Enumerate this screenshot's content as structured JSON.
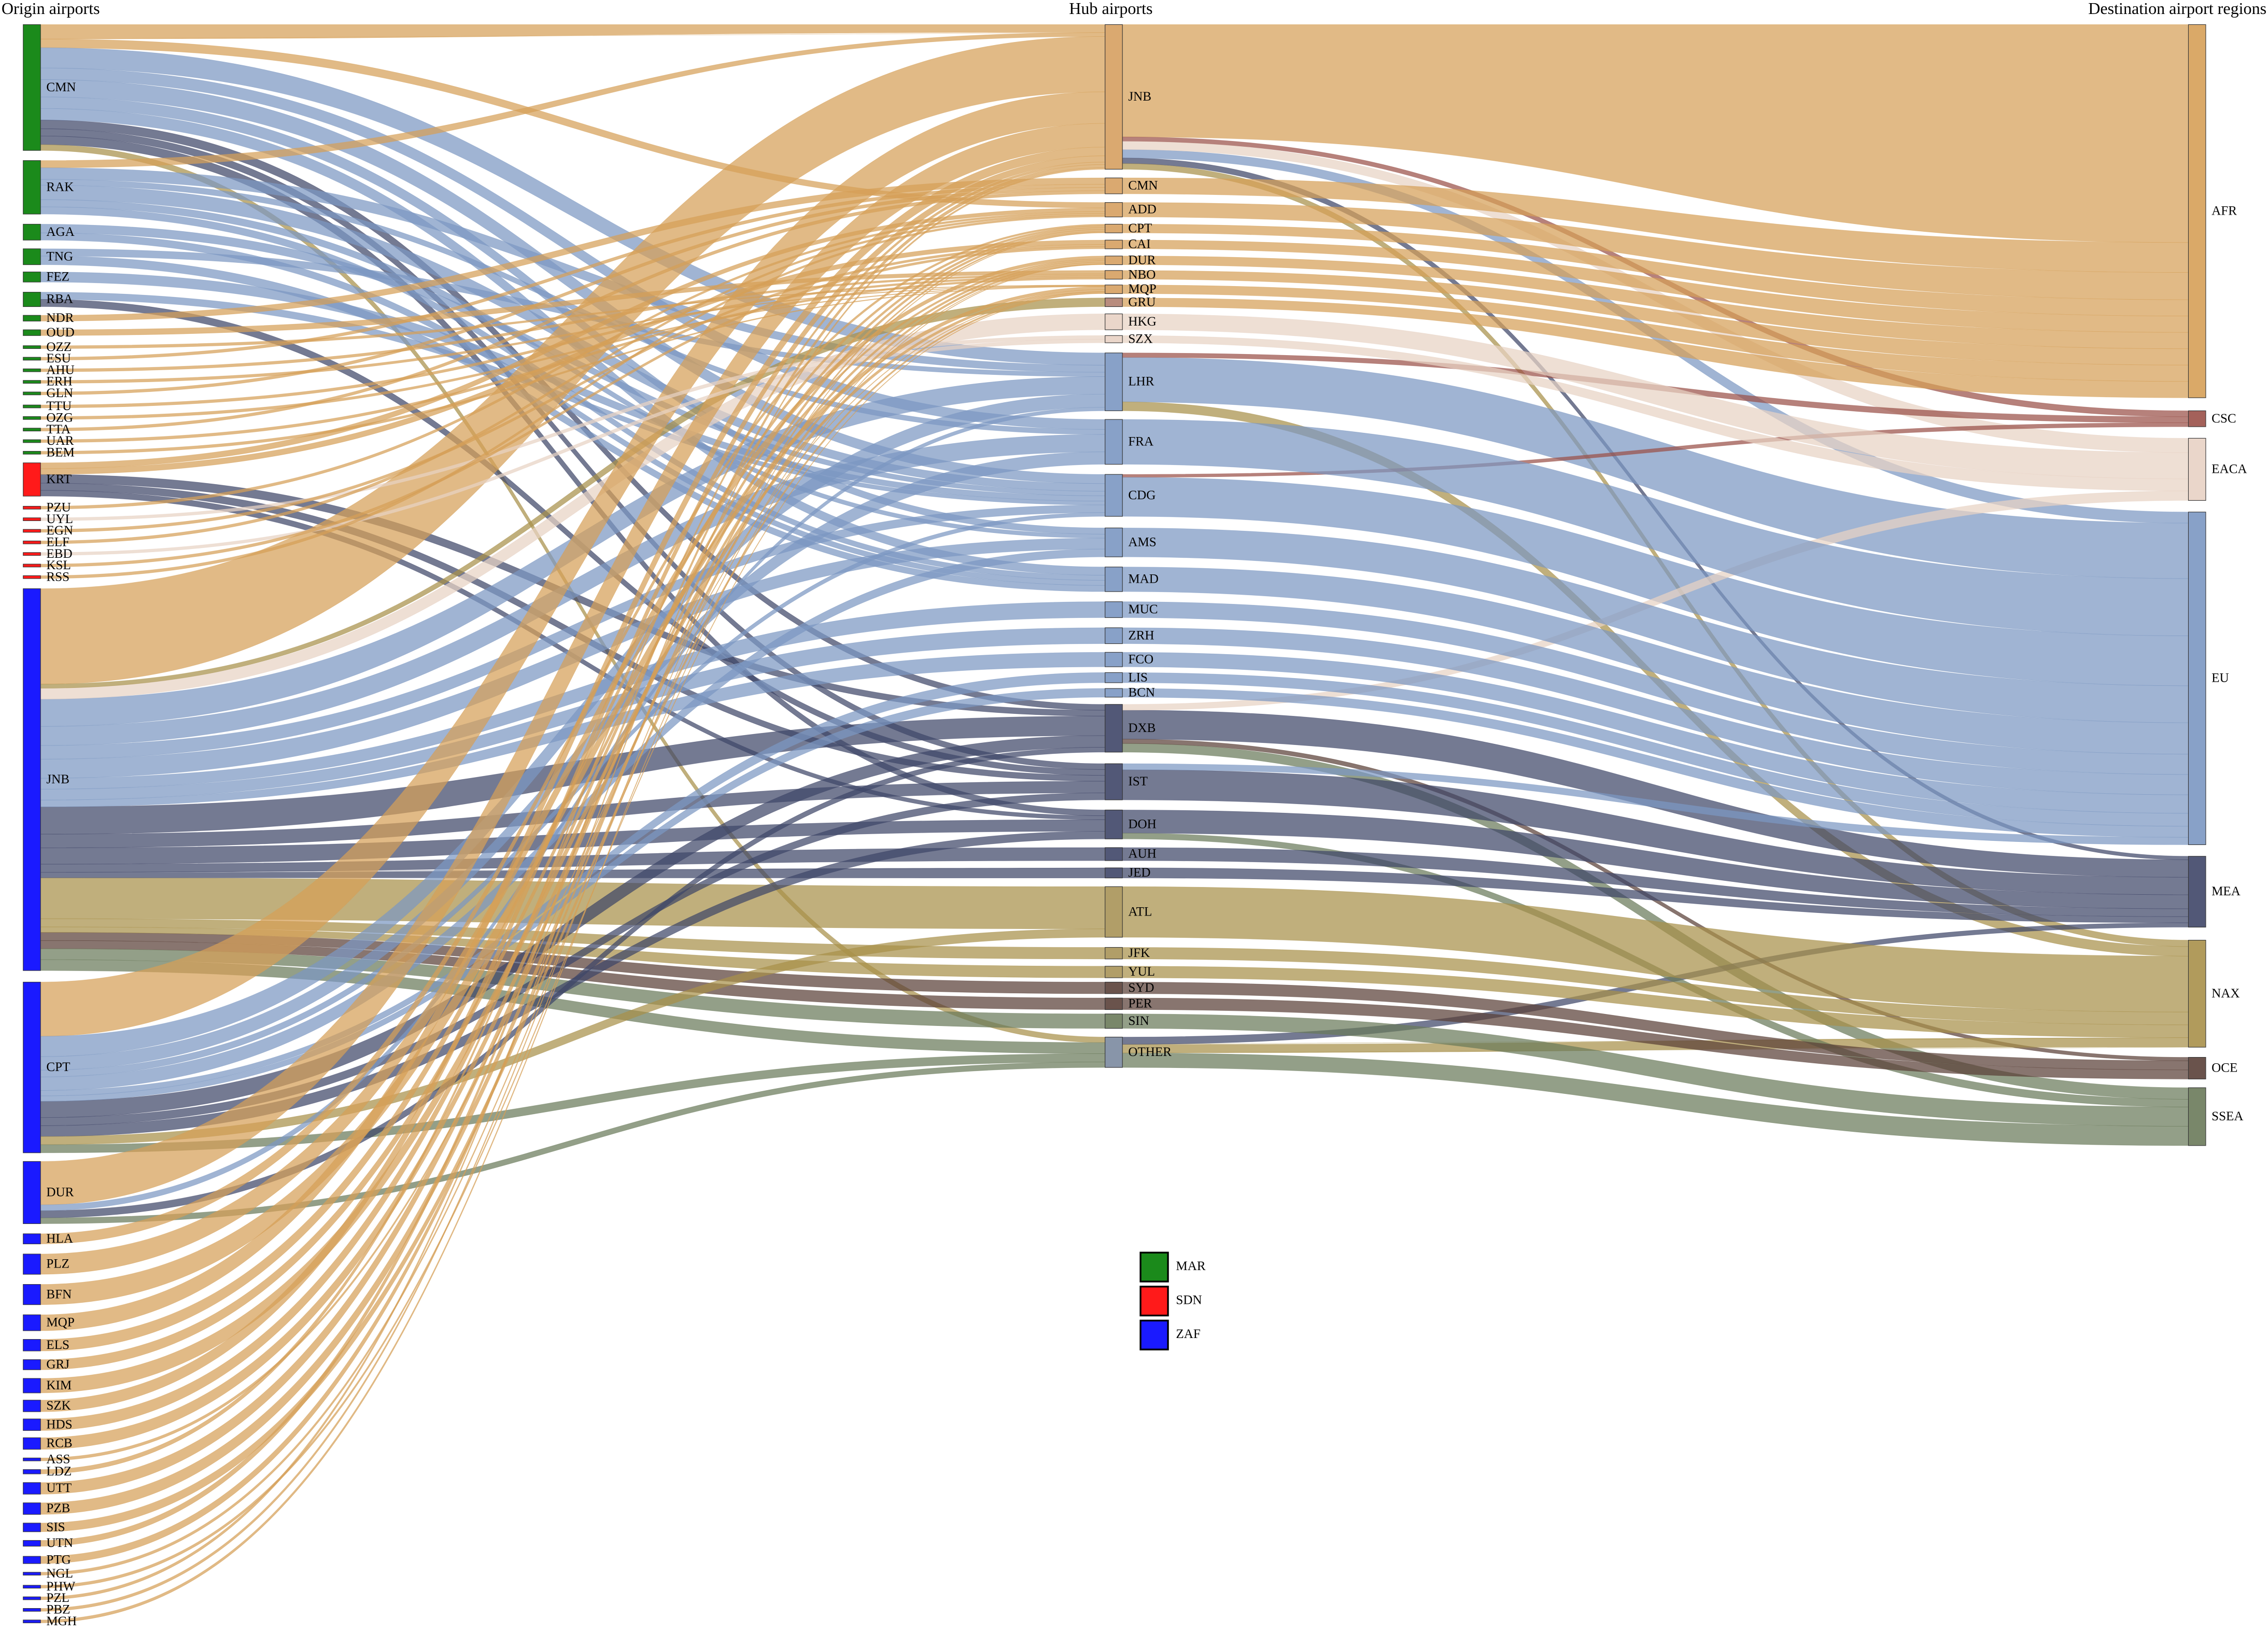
{
  "header": {
    "origin": "Origin airports",
    "hub": "Hub airports",
    "destination": "Destination airport regions"
  },
  "origins": [
    {
      "label": "CMN",
      "color": "#1b8a1b"
    },
    {
      "label": "RAK",
      "color": "#1b8a1b"
    },
    {
      "label": "AGA",
      "color": "#1b8a1b"
    },
    {
      "label": "TNG",
      "color": "#1b8a1b"
    },
    {
      "label": "FEZ",
      "color": "#1b8a1b"
    },
    {
      "label": "RBA",
      "color": "#1b8a1b"
    },
    {
      "label": "NDR",
      "color": "#1b8a1b"
    },
    {
      "label": "OUD",
      "color": "#1b8a1b"
    },
    {
      "label": "OZZ",
      "color": "#1b8a1b"
    },
    {
      "label": "ESU",
      "color": "#1b8a1b"
    },
    {
      "label": "AHU",
      "color": "#1b8a1b"
    },
    {
      "label": "ERH",
      "color": "#1b8a1b"
    },
    {
      "label": "GLN",
      "color": "#1b8a1b"
    },
    {
      "label": "TTU",
      "color": "#1b8a1b"
    },
    {
      "label": "OZG",
      "color": "#1b8a1b"
    },
    {
      "label": "TTA",
      "color": "#1b8a1b"
    },
    {
      "label": "UAR",
      "color": "#1b8a1b"
    },
    {
      "label": "BEM",
      "color": "#1b8a1b"
    },
    {
      "label": "KRT",
      "color": "#ff1a1a"
    },
    {
      "label": "PZU",
      "color": "#ff1a1a"
    },
    {
      "label": "UYL",
      "color": "#ff1a1a"
    },
    {
      "label": "EGN",
      "color": "#ff1a1a"
    },
    {
      "label": "ELF",
      "color": "#ff1a1a"
    },
    {
      "label": "EBD",
      "color": "#ff1a1a"
    },
    {
      "label": "KSL",
      "color": "#ff1a1a"
    },
    {
      "label": "RSS",
      "color": "#ff1a1a"
    },
    {
      "label": "JNB",
      "color": "#1a1aff"
    },
    {
      "label": "CPT",
      "color": "#1a1aff"
    },
    {
      "label": "DUR",
      "color": "#1a1aff"
    },
    {
      "label": "HLA",
      "color": "#1a1aff"
    },
    {
      "label": "PLZ",
      "color": "#1a1aff"
    },
    {
      "label": "BFN",
      "color": "#1a1aff"
    },
    {
      "label": "MQP",
      "color": "#1a1aff"
    },
    {
      "label": "ELS",
      "color": "#1a1aff"
    },
    {
      "label": "GRJ",
      "color": "#1a1aff"
    },
    {
      "label": "KIM",
      "color": "#1a1aff"
    },
    {
      "label": "SZK",
      "color": "#1a1aff"
    },
    {
      "label": "HDS",
      "color": "#1a1aff"
    },
    {
      "label": "RCB",
      "color": "#1a1aff"
    },
    {
      "label": "ASS",
      "color": "#1a1aff"
    },
    {
      "label": "LDZ",
      "color": "#1a1aff"
    },
    {
      "label": "UTT",
      "color": "#1a1aff"
    },
    {
      "label": "PZB",
      "color": "#1a1aff"
    },
    {
      "label": "SIS",
      "color": "#1a1aff"
    },
    {
      "label": "UTN",
      "color": "#1a1aff"
    },
    {
      "label": "PTG",
      "color": "#1a1aff"
    },
    {
      "label": "NGL",
      "color": "#1a1aff"
    },
    {
      "label": "PHW",
      "color": "#1a1aff"
    },
    {
      "label": "PZL",
      "color": "#1a1aff"
    },
    {
      "label": "PBZ",
      "color": "#1a1aff"
    },
    {
      "label": "MGH",
      "color": "#1a1aff"
    }
  ],
  "hubs": [
    {
      "label": "JNB",
      "color": "#d6a060"
    },
    {
      "label": "CMN",
      "color": "#d6a060"
    },
    {
      "label": "ADD",
      "color": "#d6a060"
    },
    {
      "label": "CPT",
      "color": "#d6a060"
    },
    {
      "label": "CAI",
      "color": "#d6a060"
    },
    {
      "label": "DUR",
      "color": "#d6a060"
    },
    {
      "label": "NBO",
      "color": "#d6a060"
    },
    {
      "label": "MQP",
      "color": "#d6a060"
    },
    {
      "label": "GRU",
      "color": "#b08070"
    },
    {
      "label": "HKG",
      "color": "#e8d2c4"
    },
    {
      "label": "SZX",
      "color": "#e8d2c4"
    },
    {
      "label": "LHR",
      "color": "#7b97c2"
    },
    {
      "label": "FRA",
      "color": "#7b97c2"
    },
    {
      "label": "CDG",
      "color": "#7b97c2"
    },
    {
      "label": "AMS",
      "color": "#7b97c2"
    },
    {
      "label": "MAD",
      "color": "#7b97c2"
    },
    {
      "label": "MUC",
      "color": "#7b97c2"
    },
    {
      "label": "ZRH",
      "color": "#7b97c2"
    },
    {
      "label": "FCO",
      "color": "#7b97c2"
    },
    {
      "label": "LIS",
      "color": "#7b97c2"
    },
    {
      "label": "BCN",
      "color": "#7b97c2"
    },
    {
      "label": "DXB",
      "color": "#3f4668"
    },
    {
      "label": "IST",
      "color": "#3f4668"
    },
    {
      "label": "DOH",
      "color": "#3f4668"
    },
    {
      "label": "AUH",
      "color": "#3f4668"
    },
    {
      "label": "JED",
      "color": "#3f4668"
    },
    {
      "label": "ATL",
      "color": "#a89458"
    },
    {
      "label": "JFK",
      "color": "#a89458"
    },
    {
      "label": "YUL",
      "color": "#a89458"
    },
    {
      "label": "SYD",
      "color": "#5a4038"
    },
    {
      "label": "PER",
      "color": "#5a4038"
    },
    {
      "label": "SIN",
      "color": "#6a7a5a"
    },
    {
      "label": "OTHER",
      "color": "#7b8aa0"
    }
  ],
  "destinations": [
    {
      "label": "AFR",
      "color": "#d6a058"
    },
    {
      "label": "CSC",
      "color": "#9a5048"
    },
    {
      "label": "EACA",
      "color": "#e8d2c4"
    },
    {
      "label": "EU",
      "color": "#7b97c2"
    },
    {
      "label": "MEA",
      "color": "#3f4668"
    },
    {
      "label": "NAX",
      "color": "#a8904a"
    },
    {
      "label": "OCE",
      "color": "#5a4038"
    },
    {
      "label": "SSEA",
      "color": "#6a7a5a"
    }
  ],
  "legend": [
    {
      "label": "MAR",
      "color": "#1b8a1b"
    },
    {
      "label": "SDN",
      "color": "#ff1a1a"
    },
    {
      "label": "ZAF",
      "color": "#1a1aff"
    }
  ]
}
